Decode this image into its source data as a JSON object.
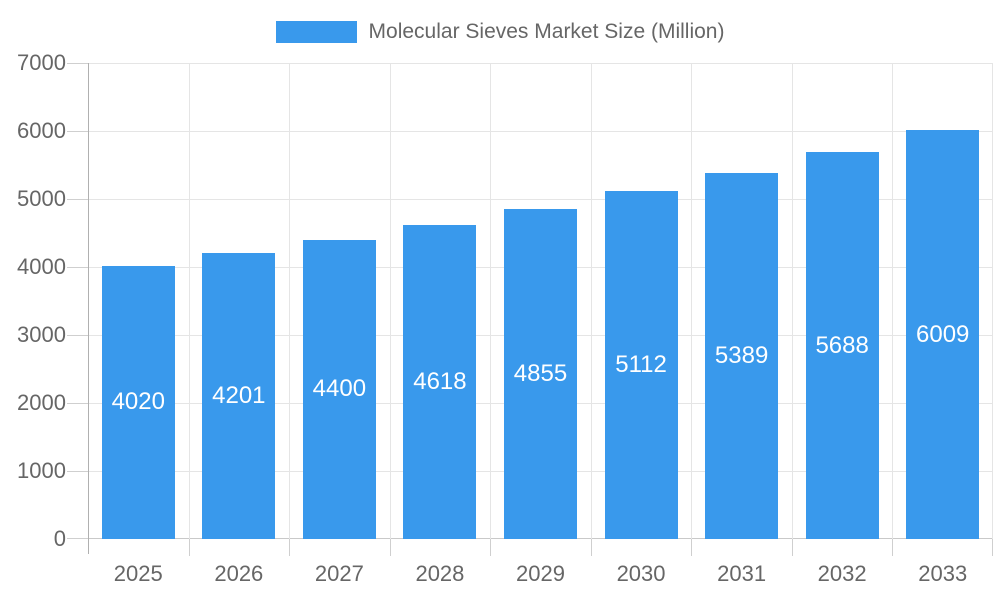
{
  "legend": {
    "label": "Molecular Sieves Market Size (Million)"
  },
  "chart_data": {
    "type": "bar",
    "title": "Molecular Sieves Market Size (Million)",
    "categories": [
      "2025",
      "2026",
      "2027",
      "2028",
      "2029",
      "2030",
      "2031",
      "2032",
      "2033"
    ],
    "values": [
      4020,
      4201,
      4400,
      4618,
      4855,
      5112,
      5389,
      5688,
      6009
    ],
    "xlabel": "",
    "ylabel": "",
    "ylim": [
      0,
      7000
    ],
    "yticks": [
      0,
      1000,
      2000,
      3000,
      4000,
      5000,
      6000,
      7000
    ],
    "grid": true,
    "legend_position": "top-center",
    "value_label_position": "inside-middle",
    "colors": {
      "bar": "#3999EC",
      "grid": "#E5E5E5",
      "y_axis_line": "#B0B0B0",
      "x_axis_line": "#C9C9C9",
      "tick": "#CFCFCF",
      "text": "#666666",
      "value_label": "#FFFFFF",
      "background": "#FFFFFF"
    }
  }
}
